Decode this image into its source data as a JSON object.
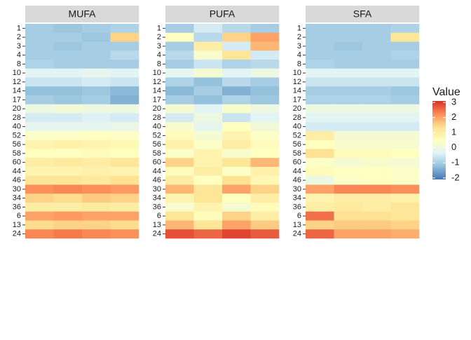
{
  "chart_data": {
    "type": "heatmap",
    "rows": [
      "1",
      "2",
      "3",
      "4",
      "8",
      "10",
      "12",
      "14",
      "17",
      "20",
      "28",
      "40",
      "52",
      "56",
      "58",
      "60",
      "44",
      "46",
      "30",
      "34",
      "36",
      "6",
      "13",
      "24"
    ],
    "panels": [
      {
        "title": "MUFA",
        "values": [
          [
            -1,
            -1.1,
            -1,
            -0.9
          ],
          [
            -1,
            -1,
            -1.1,
            1.5
          ],
          [
            -1,
            -1.1,
            -1,
            -1
          ],
          [
            -1,
            -1,
            -1,
            -0.8
          ],
          [
            -0.9,
            -1,
            -1,
            -1
          ],
          [
            -0.3,
            -0.3,
            -0.2,
            -0.3
          ],
          [
            -0.6,
            -0.6,
            -0.5,
            -0.6
          ],
          [
            -1.2,
            -1.2,
            -1.1,
            -1.3
          ],
          [
            -1,
            -1.1,
            -1,
            -1.4
          ],
          [
            0,
            0.1,
            0,
            0
          ],
          [
            -0.5,
            -0.5,
            -0.4,
            -0.5
          ],
          [
            -0.2,
            -0.2,
            -0.2,
            -0.1
          ],
          [
            0.4,
            0.4,
            0.5,
            0.4
          ],
          [
            0.8,
            0.9,
            0.8,
            0.7
          ],
          [
            0.5,
            0.5,
            0.6,
            0.5
          ],
          [
            1,
            1.1,
            1,
            1.2
          ],
          [
            0.8,
            0.8,
            0.9,
            0.8
          ],
          [
            1.2,
            1.2,
            1.1,
            1.3
          ],
          [
            2.2,
            2.3,
            2.2,
            2.1
          ],
          [
            1.5,
            1.4,
            1.6,
            1.5
          ],
          [
            1,
            1,
            1.1,
            1
          ],
          [
            2,
            2.1,
            2,
            2
          ],
          [
            1.4,
            1.5,
            1.5,
            1.4
          ],
          [
            2.3,
            2.4,
            2.3,
            2.2
          ]
        ]
      },
      {
        "title": "PUFA",
        "values": [
          [
            -1,
            -0.5,
            -0.8,
            -1
          ],
          [
            0.5,
            -0.8,
            1.5,
            2
          ],
          [
            -1,
            1,
            -0.5,
            1.8
          ],
          [
            -0.8,
            0.3,
            1.2,
            -0.5
          ],
          [
            -1,
            -0.6,
            -0.9,
            -0.8
          ],
          [
            -0.2,
            0.2,
            -0.3,
            0
          ],
          [
            -0.9,
            -1.2,
            -0.8,
            -1
          ],
          [
            -1.3,
            -1,
            -1.4,
            -1.2
          ],
          [
            -1,
            -1.2,
            -0.9,
            -1.1
          ],
          [
            0.2,
            -0.3,
            0.3,
            0
          ],
          [
            -0.5,
            0,
            -0.6,
            -0.3
          ],
          [
            0.3,
            -0.2,
            0.5,
            0.1
          ],
          [
            0.6,
            0.2,
            0.8,
            0.4
          ],
          [
            0.9,
            0.4,
            1,
            0.6
          ],
          [
            0.4,
            0.8,
            0.3,
            0.5
          ],
          [
            1.5,
            0.8,
            1.2,
            1.8
          ],
          [
            0.6,
            1,
            0.4,
            0.9
          ],
          [
            1,
            0.5,
            1.3,
            0.7
          ],
          [
            1.8,
            1.2,
            2,
            1.5
          ],
          [
            0.8,
            1.2,
            0.5,
            1
          ],
          [
            0.3,
            0.8,
            0.2,
            0.6
          ],
          [
            1.2,
            0.6,
            1.5,
            1
          ],
          [
            1.8,
            1.2,
            2,
            1.6
          ],
          [
            2.8,
            2.6,
            2.9,
            2.7
          ]
        ]
      },
      {
        "title": "SFA",
        "values": [
          [
            -1,
            -1,
            -1,
            -0.9
          ],
          [
            -1,
            -1,
            -1,
            1.2
          ],
          [
            -1,
            -1.1,
            -1,
            -1
          ],
          [
            -1,
            -1,
            -1,
            -0.9
          ],
          [
            -0.9,
            -1,
            -1,
            -1
          ],
          [
            -0.3,
            -0.3,
            -0.3,
            -0.3
          ],
          [
            -0.6,
            -0.6,
            -0.6,
            -0.6
          ],
          [
            -1,
            -1,
            -1,
            -1.1
          ],
          [
            -0.9,
            -0.9,
            -0.9,
            -1
          ],
          [
            0,
            0,
            0,
            0
          ],
          [
            -0.3,
            -0.3,
            -0.3,
            -0.3
          ],
          [
            -0.5,
            -0.5,
            -0.5,
            -0.5
          ],
          [
            1,
            0.2,
            0.2,
            0.2
          ],
          [
            0.5,
            0.3,
            0.3,
            0.3
          ],
          [
            1.3,
            0.6,
            0.6,
            0.5
          ],
          [
            0.4,
            0.2,
            0.3,
            0.2
          ],
          [
            0.6,
            0.5,
            0.5,
            0.4
          ],
          [
            0,
            0.4,
            0.5,
            0.4
          ],
          [
            2,
            2.3,
            2.3,
            2.2
          ],
          [
            0.8,
            1,
            1,
            0.9
          ],
          [
            1,
            1.1,
            1,
            1.2
          ],
          [
            2.5,
            1.3,
            1.3,
            1.2
          ],
          [
            1.5,
            1.6,
            1.6,
            1.5
          ],
          [
            2.6,
            2,
            2,
            1.9
          ]
        ]
      }
    ],
    "legend_title": "Value",
    "clim": [
      -2.1,
      3.1
    ],
    "cticks": [
      3,
      2,
      1,
      0,
      -1,
      -2
    ],
    "colors": [
      "#4575b4",
      "#91bfdb",
      "#e0f3f8",
      "#ffffbf",
      "#fee090",
      "#fc8d59",
      "#d73027"
    ]
  }
}
